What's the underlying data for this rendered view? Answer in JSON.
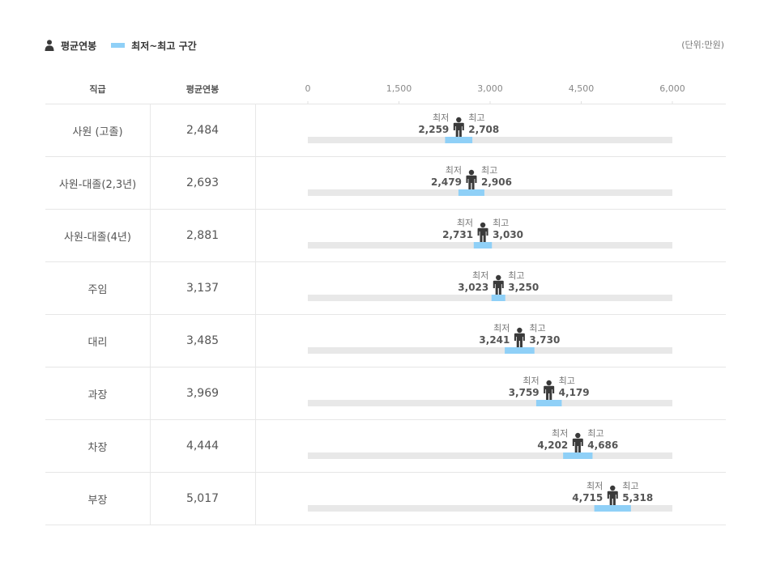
{
  "legend": {
    "avg_label": "평균연봉",
    "range_label": "최저~최고 구간"
  },
  "unit": "(단위:만원)",
  "table": {
    "header_rank": "직급",
    "header_avg": "평균연봉"
  },
  "colors": {
    "range": "#8fd0f7",
    "track": "#e8e8e8",
    "person": "#3a3a3a"
  },
  "chart_data": {
    "type": "range-dot",
    "xlim": [
      0,
      6000
    ],
    "xticks": [
      "0",
      "1,500",
      "3,000",
      "4,500",
      "6,000"
    ],
    "min_label": "최저",
    "max_label": "최고",
    "rows": [
      {
        "rank": "사원 (고졸)",
        "avg": 2484,
        "avg_label": "2,484",
        "min": 2259,
        "min_label": "2,259",
        "max": 2708,
        "max_label": "2,708"
      },
      {
        "rank": "사원-대졸(2,3년)",
        "avg": 2693,
        "avg_label": "2,693",
        "min": 2479,
        "min_label": "2,479",
        "max": 2906,
        "max_label": "2,906"
      },
      {
        "rank": "사원-대졸(4년)",
        "avg": 2881,
        "avg_label": "2,881",
        "min": 2731,
        "min_label": "2,731",
        "max": 3030,
        "max_label": "3,030"
      },
      {
        "rank": "주임",
        "avg": 3137,
        "avg_label": "3,137",
        "min": 3023,
        "min_label": "3,023",
        "max": 3250,
        "max_label": "3,250"
      },
      {
        "rank": "대리",
        "avg": 3485,
        "avg_label": "3,485",
        "min": 3241,
        "min_label": "3,241",
        "max": 3730,
        "max_label": "3,730"
      },
      {
        "rank": "과장",
        "avg": 3969,
        "avg_label": "3,969",
        "min": 3759,
        "min_label": "3,759",
        "max": 4179,
        "max_label": "4,179"
      },
      {
        "rank": "차장",
        "avg": 4444,
        "avg_label": "4,444",
        "min": 4202,
        "min_label": "4,202",
        "max": 4686,
        "max_label": "4,686"
      },
      {
        "rank": "부장",
        "avg": 5017,
        "avg_label": "5,017",
        "min": 4715,
        "min_label": "4,715",
        "max": 5318,
        "max_label": "5,318"
      }
    ]
  }
}
